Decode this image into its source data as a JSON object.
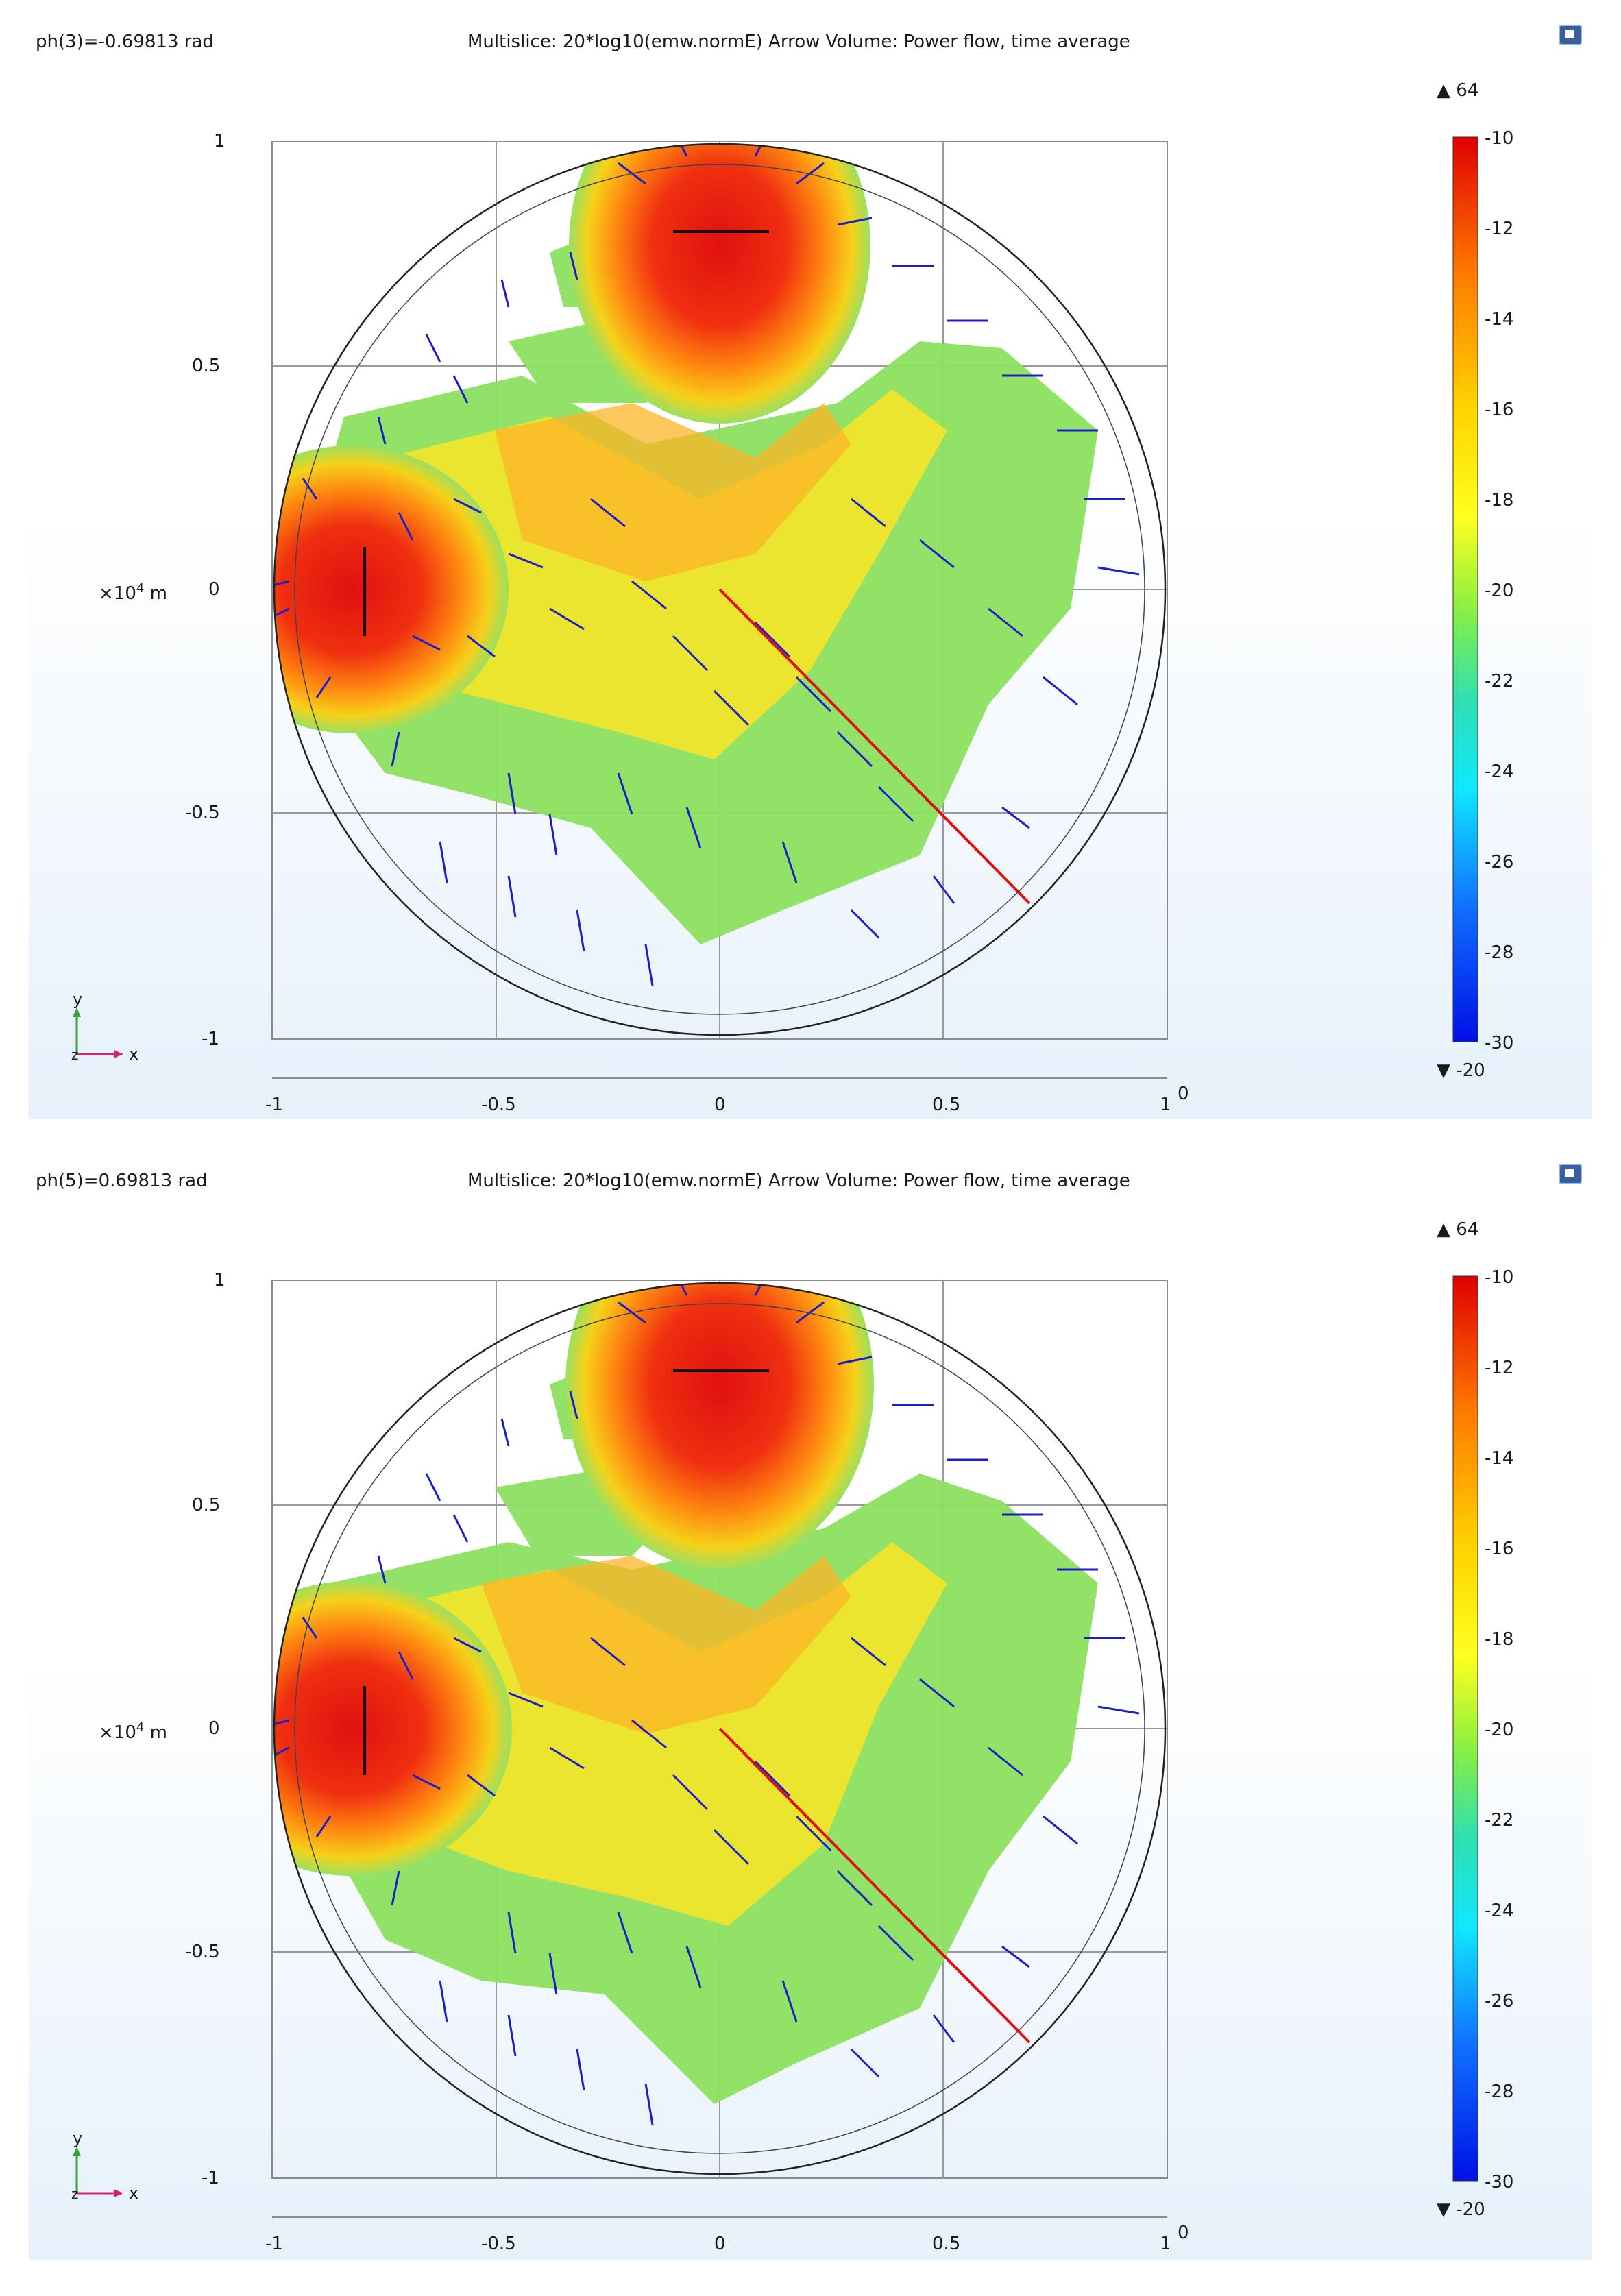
{
  "colors": {
    "accent": "#1e1ec8",
    "ray": "#e01010",
    "grid": "#8a8a8a"
  },
  "panels": [
    {
      "phase_label": "ph(3)=-0.69813 rad",
      "title": "Multislice: 20*log10(emw.normE)  Arrow Volume: Power flow, time average",
      "icon": "comsol-logo-icon"
    },
    {
      "phase_label": "ph(5)=0.69813 rad",
      "title": "Multislice: 20*log10(emw.normE)  Arrow Volume: Power flow, time average",
      "icon": "comsol-logo-icon"
    }
  ],
  "axes": {
    "x_ticks": [
      "-1",
      "-0.5",
      "0",
      "0.5",
      "1"
    ],
    "y_ticks": [
      "1",
      "0.5",
      "0",
      "-0.5",
      "-1"
    ],
    "y_unit_prefix": "×10",
    "y_unit_exp": "4",
    "y_unit_suffix": " m",
    "x_end_label": "0",
    "triad": {
      "x": "x",
      "y": "y",
      "z": "z"
    }
  },
  "colorbar": {
    "max_label": "▲ 64",
    "min_label": "▼ -20",
    "ticks": [
      "-10",
      "-12",
      "-14",
      "-16",
      "-18",
      "-20",
      "-22",
      "-24",
      "-26",
      "-28",
      "-30"
    ]
  },
  "chart_data": [
    {
      "type": "field-plot",
      "title": "Multislice: 20*log10(emw.normE)  Arrow Volume: Power flow, time average",
      "phase_rad": -0.69813,
      "x_range": [
        -1,
        1
      ],
      "y_range": [
        -1,
        1
      ],
      "color_range": [
        -30,
        -10
      ],
      "color_max": 64,
      "color_min": -20,
      "sources": [
        [
          -0.8,
          0.0
        ],
        [
          0.0,
          0.8
        ]
      ],
      "ray": {
        "from": [
          0,
          0
        ],
        "to": [
          0.7,
          -0.7
        ]
      }
    },
    {
      "type": "field-plot",
      "title": "Multislice: 20*log10(emw.normE)  Arrow Volume: Power flow, time average",
      "phase_rad": 0.69813,
      "x_range": [
        -1,
        1
      ],
      "y_range": [
        -1,
        1
      ],
      "color_range": [
        -30,
        -10
      ],
      "color_max": 64,
      "color_min": -20,
      "sources": [
        [
          -0.8,
          0.0
        ],
        [
          0.0,
          0.8
        ]
      ],
      "ray": {
        "from": [
          0,
          0
        ],
        "to": [
          0.7,
          -0.7
        ]
      }
    }
  ]
}
